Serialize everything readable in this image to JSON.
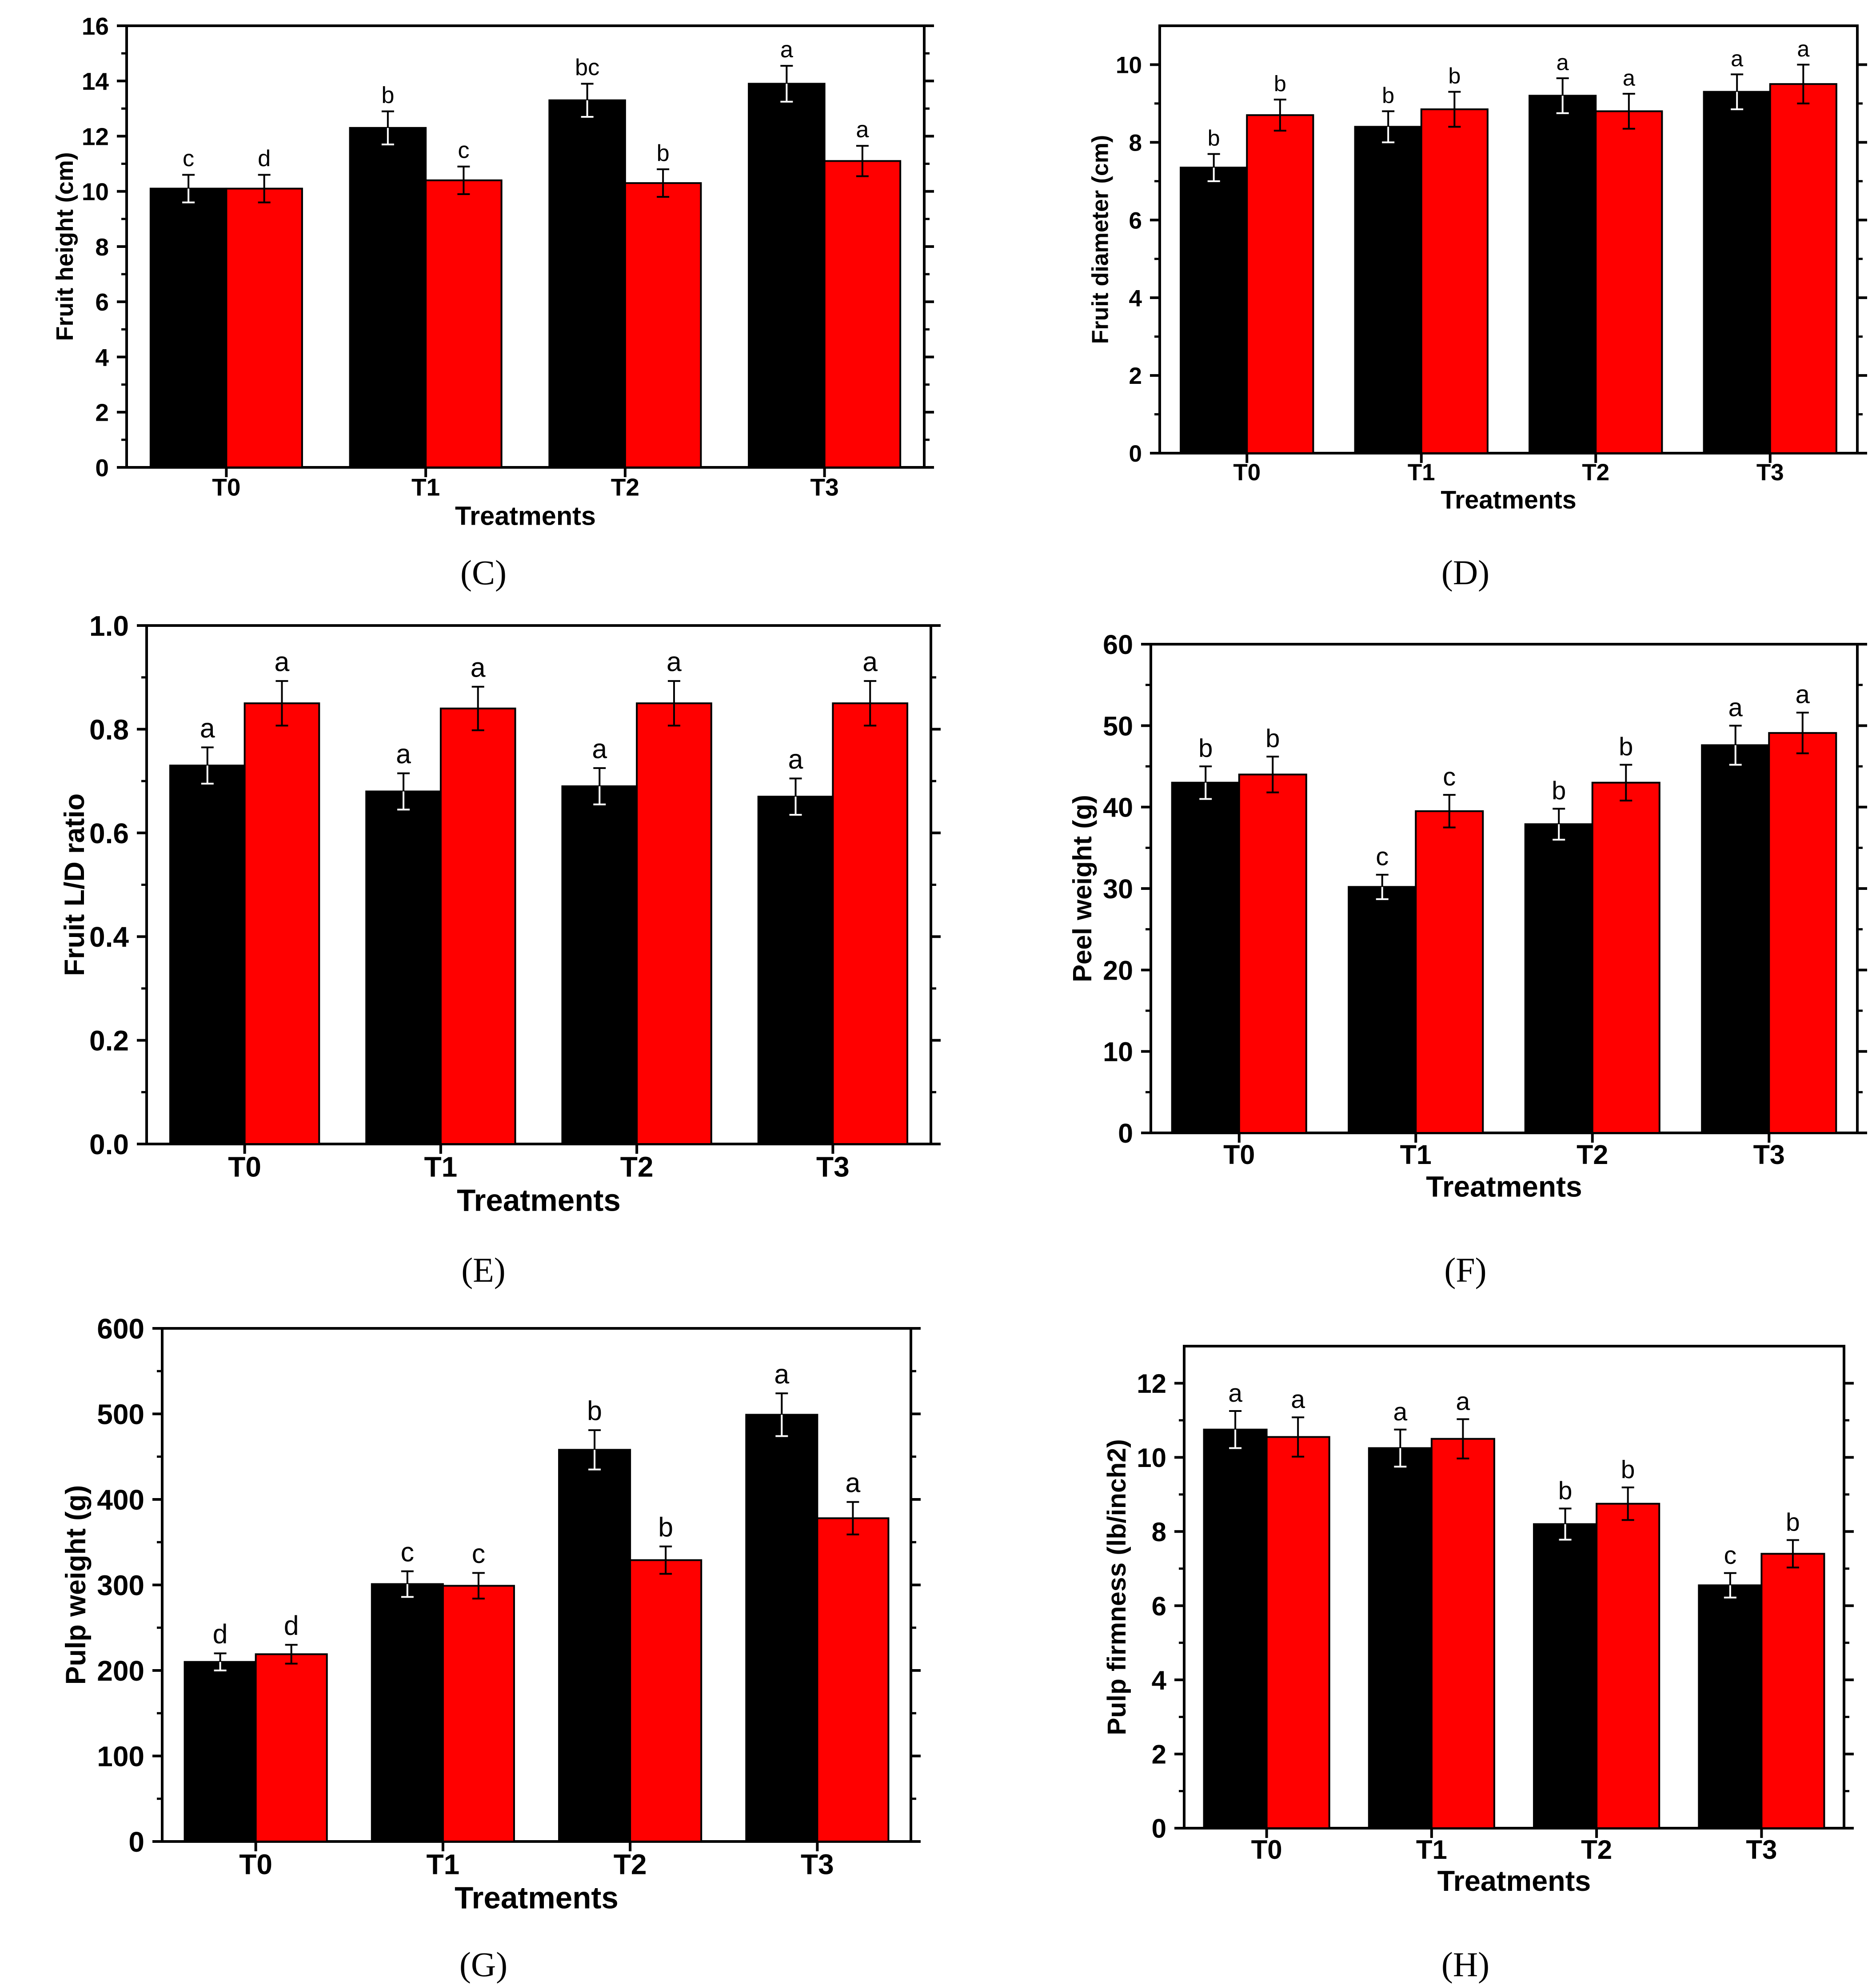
{
  "colors": {
    "series_1": "#000000",
    "series_2": "#ff0000",
    "axis": "#000000"
  },
  "chart_data": [
    {
      "id": "C",
      "type": "bar",
      "caption": "(C)",
      "xlabel": "Treatments",
      "ylabel": "Fruit height (cm)",
      "categories": [
        "T0",
        "T1",
        "T2",
        "T3"
      ],
      "ylim": [
        0,
        16
      ],
      "yticks": [
        0,
        2,
        4,
        6,
        8,
        10,
        12,
        14,
        16
      ],
      "tick_labels": [
        "0",
        "2",
        "4",
        "6",
        "8",
        "10",
        "12",
        "14",
        "16"
      ],
      "series": [
        {
          "name": "series 1 (black)",
          "values": [
            10.1,
            12.3,
            13.3,
            13.9
          ],
          "errors": [
            0.5,
            0.6,
            0.6,
            0.65
          ],
          "letters": [
            "c",
            "b",
            "bc",
            "a"
          ]
        },
        {
          "name": "series 2 (red)",
          "values": [
            10.1,
            10.4,
            10.3,
            11.1
          ],
          "errors": [
            0.5,
            0.5,
            0.5,
            0.55
          ],
          "letters": [
            "d",
            "c",
            "b",
            "a"
          ]
        }
      ]
    },
    {
      "id": "D",
      "type": "bar",
      "caption": "(D)",
      "xlabel": "Treatments",
      "ylabel": "Fruit diameter (cm)",
      "categories": [
        "T0",
        "T1",
        "T2",
        "T3"
      ],
      "ylim": [
        0,
        11
      ],
      "yticks": [
        0,
        2,
        4,
        6,
        8,
        10
      ],
      "tick_labels": [
        "0",
        "2",
        "4",
        "6",
        "8",
        "10"
      ],
      "series": [
        {
          "name": "series 1 (black)",
          "values": [
            7.35,
            8.4,
            9.2,
            9.3
          ],
          "errors": [
            0.35,
            0.4,
            0.45,
            0.45
          ],
          "letters": [
            "b",
            "b",
            "a",
            "a"
          ]
        },
        {
          "name": "series 2 (red)",
          "values": [
            8.7,
            8.85,
            8.8,
            9.5
          ],
          "errors": [
            0.4,
            0.45,
            0.45,
            0.5
          ],
          "letters": [
            "b",
            "b",
            "a",
            "a"
          ]
        }
      ]
    },
    {
      "id": "E",
      "type": "bar",
      "caption": "(E)",
      "xlabel": "Treatments",
      "ylabel": "Fruit L/D ratio",
      "categories": [
        "T0",
        "T1",
        "T2",
        "T3"
      ],
      "ylim": [
        0,
        1.0
      ],
      "yticks": [
        0,
        0.2,
        0.4,
        0.6,
        0.8,
        1.0
      ],
      "tick_labels": [
        "0.0",
        "0.2",
        "0.4",
        "0.6",
        "0.8",
        "1.0"
      ],
      "series": [
        {
          "name": "series 1 (black)",
          "values": [
            0.73,
            0.68,
            0.69,
            0.67
          ],
          "errors": [
            0.035,
            0.035,
            0.035,
            0.035
          ],
          "letters": [
            "a",
            "a",
            "a",
            "a"
          ]
        },
        {
          "name": "series 2 (red)",
          "values": [
            0.85,
            0.84,
            0.85,
            0.85
          ],
          "errors": [
            0.043,
            0.042,
            0.043,
            0.043
          ],
          "letters": [
            "a",
            "a",
            "a",
            "a"
          ]
        }
      ]
    },
    {
      "id": "F",
      "type": "bar",
      "caption": "(F)",
      "xlabel": "Treatments",
      "ylabel": "Peel weight (g)",
      "categories": [
        "T0",
        "T1",
        "T2",
        "T3"
      ],
      "ylim": [
        0,
        60
      ],
      "yticks": [
        0,
        10,
        20,
        30,
        40,
        50,
        60
      ],
      "tick_labels": [
        "0",
        "10",
        "20",
        "30",
        "40",
        "50",
        "60"
      ],
      "series": [
        {
          "name": "series 1 (black)",
          "values": [
            43,
            30.2,
            37.9,
            47.6
          ],
          "errors": [
            2.0,
            1.5,
            1.9,
            2.4
          ],
          "letters": [
            "b",
            "c",
            "b",
            "a"
          ]
        },
        {
          "name": "series 2 (red)",
          "values": [
            44,
            39.5,
            43,
            49.1
          ],
          "errors": [
            2.2,
            2.0,
            2.2,
            2.5
          ],
          "letters": [
            "b",
            "c",
            "b",
            "a"
          ]
        }
      ]
    },
    {
      "id": "G",
      "type": "bar",
      "caption": "(G)",
      "xlabel": "Treatments",
      "ylabel": "Pulp weight (g)",
      "categories": [
        "T0",
        "T1",
        "T2",
        "T3"
      ],
      "ylim": [
        0,
        600
      ],
      "yticks": [
        0,
        100,
        200,
        300,
        400,
        500,
        600
      ],
      "tick_labels": [
        "0",
        "100",
        "200",
        "300",
        "400",
        "500",
        "600"
      ],
      "series": [
        {
          "name": "series 1 (black)",
          "values": [
            210,
            301,
            458,
            499
          ],
          "errors": [
            10,
            15,
            23,
            25
          ],
          "letters": [
            "d",
            "c",
            "b",
            "a"
          ]
        },
        {
          "name": "series 2 (red)",
          "values": [
            219,
            299,
            329,
            378
          ],
          "errors": [
            11,
            15,
            16,
            19
          ],
          "letters": [
            "d",
            "c",
            "b",
            "a"
          ]
        }
      ]
    },
    {
      "id": "H",
      "type": "bar",
      "caption": "(H)",
      "xlabel": "Treatments",
      "ylabel": "Pulp firmness (lb/inch2)",
      "categories": [
        "T0",
        "T1",
        "T2",
        "T3"
      ],
      "ylim": [
        0,
        13
      ],
      "yticks": [
        0,
        2,
        4,
        6,
        8,
        10,
        12
      ],
      "tick_labels": [
        "0",
        "2",
        "4",
        "6",
        "8",
        "10",
        "12"
      ],
      "series": [
        {
          "name": "series 1 (black)",
          "values": [
            10.75,
            10.25,
            8.2,
            6.55
          ],
          "errors": [
            0.5,
            0.5,
            0.42,
            0.33
          ],
          "letters": [
            "a",
            "a",
            "b",
            "c"
          ]
        },
        {
          "name": "series 2 (red)",
          "values": [
            10.55,
            10.5,
            8.75,
            7.4
          ],
          "errors": [
            0.53,
            0.53,
            0.44,
            0.37
          ],
          "letters": [
            "a",
            "a",
            "b",
            "b"
          ]
        }
      ]
    }
  ]
}
